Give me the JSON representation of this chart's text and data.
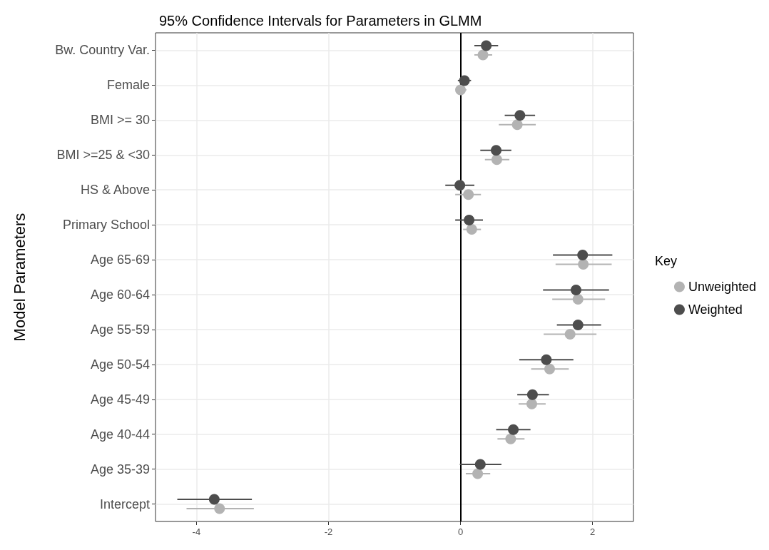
{
  "chart_data": {
    "type": "scatter",
    "title": "95% Confidence Intervals for Parameters in GLMM",
    "ylabel": "Model Parameters",
    "legend_title": "Key",
    "orientation": "horizontal",
    "categories": [
      "Bw. Country Var.",
      "Female",
      "BMI >= 30",
      "BMI >=25 & <30",
      "HS & Above",
      "Primary School",
      "Age 65-69",
      "Age 60-64",
      "Age 55-59",
      "Age 50-54",
      "Age 45-49",
      "Age 40-44",
      "Age 35-39",
      "Intercept"
    ],
    "series": [
      {
        "name": "Unweighted",
        "color": "#b3b3b3",
        "values": [
          0.34,
          0.0,
          0.86,
          0.55,
          0.12,
          0.17,
          1.86,
          1.78,
          1.66,
          1.35,
          1.08,
          0.76,
          0.26,
          -3.65
        ],
        "errors": [
          [
            0.21,
            0.48
          ],
          [
            -0.06,
            0.09
          ],
          [
            0.58,
            1.14
          ],
          [
            0.37,
            0.74
          ],
          [
            -0.08,
            0.31
          ],
          [
            0.04,
            0.31
          ],
          [
            1.44,
            2.29
          ],
          [
            1.39,
            2.19
          ],
          [
            1.26,
            2.06
          ],
          [
            1.07,
            1.64
          ],
          [
            0.88,
            1.29
          ],
          [
            0.56,
            0.97
          ],
          [
            0.08,
            0.45
          ],
          [
            -4.15,
            -3.13
          ]
        ]
      },
      {
        "name": "Weighted",
        "color": "#4d4d4d",
        "values": [
          0.39,
          0.06,
          0.9,
          0.54,
          -0.01,
          0.13,
          1.85,
          1.75,
          1.78,
          1.3,
          1.09,
          0.8,
          0.3,
          -3.73
        ],
        "errors": [
          [
            0.21,
            0.57
          ],
          [
            -0.04,
            0.16
          ],
          [
            0.67,
            1.13
          ],
          [
            0.3,
            0.77
          ],
          [
            -0.23,
            0.21
          ],
          [
            -0.08,
            0.34
          ],
          [
            1.4,
            2.3
          ],
          [
            1.25,
            2.25
          ],
          [
            1.46,
            2.13
          ],
          [
            0.89,
            1.71
          ],
          [
            0.86,
            1.34
          ],
          [
            0.54,
            1.06
          ],
          [
            -0.01,
            0.62
          ],
          [
            -4.29,
            -3.16
          ]
        ]
      }
    ],
    "xlim": [
      -4.62,
      2.62
    ],
    "xticks": [
      -4,
      -2,
      0,
      2
    ],
    "grid": true,
    "legend": "right",
    "marker": "circle",
    "ref_lines": [
      {
        "axis": "x",
        "value": 0,
        "color": "#000000"
      }
    ]
  }
}
